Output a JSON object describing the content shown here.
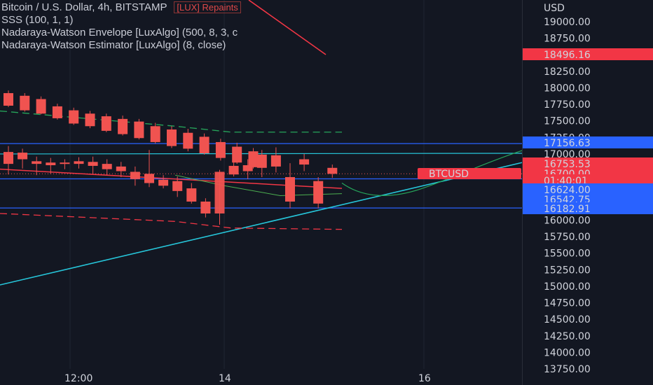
{
  "legend": {
    "title": "Bitcoin / U.S. Dollar, 4h, BITSTAMP",
    "repaint_note": "[LUX] Repaints",
    "line2": "SSS (100, 1, 1)",
    "line3": "Nadaraya-Watson Envelope [LuxAlgo] (500, 8, 3, c",
    "line4": "Nadaraya-Watson Estimator [LuxAlgo] (8, close)"
  },
  "axis": {
    "currency": "USD",
    "ticks": [
      "19000.00",
      "18750.00",
      "18250.00",
      "18000.00",
      "17750.00",
      "17500.00",
      "17250.00",
      "17000.00",
      "16000.00",
      "15750.00",
      "15500.00",
      "15250.00",
      "15000.00",
      "14750.00",
      "14500.00",
      "14250.00",
      "14000.00",
      "13750.00"
    ],
    "x_labels": [
      {
        "text": "12:00"
      },
      {
        "text": "14"
      },
      {
        "text": "16"
      }
    ]
  },
  "price_tags": [
    {
      "text": "18496.16",
      "color": "#f23645"
    },
    {
      "text": "17156.63",
      "color": "#2962ff"
    },
    {
      "text": "16753.53",
      "color": "#f23645"
    },
    {
      "text": "16700.00",
      "color": "#f23645"
    },
    {
      "text": "01:40:01",
      "color": "#f23645"
    },
    {
      "text": "16624.00",
      "color": "#2962ff"
    },
    {
      "text": "16542.75",
      "color": "#2962ff"
    },
    {
      "text": "16182.91",
      "color": "#2962ff"
    }
  ],
  "symbol_tag": {
    "text": "BTCUSD",
    "color": "#f23645"
  },
  "colors": {
    "background": "#131722",
    "candle": "#f05350",
    "trend": "#26c6da",
    "hline": "#2962ff",
    "envelope_upper": "#26a65b",
    "envelope_lower": "#f23645"
  },
  "chart_data": {
    "type": "candlestick",
    "title": "Bitcoin / U.S. Dollar, 4h, BITSTAMP",
    "ylim": [
      13700,
      19200
    ],
    "y_scale": "linear",
    "x_ticks": [
      "12:00",
      "14",
      "16"
    ],
    "candles": [
      {
        "x": 1,
        "open": 17920,
        "high": 17960,
        "low": 17710,
        "close": 17730
      },
      {
        "x": 2,
        "open": 17880,
        "high": 17920,
        "low": 17640,
        "close": 17660
      },
      {
        "x": 3,
        "open": 17830,
        "high": 17870,
        "low": 17600,
        "close": 17610
      },
      {
        "x": 4,
        "open": 17720,
        "high": 17760,
        "low": 17520,
        "close": 17540
      },
      {
        "x": 5,
        "open": 17660,
        "high": 17700,
        "low": 17440,
        "close": 17460
      },
      {
        "x": 6,
        "open": 17610,
        "high": 17650,
        "low": 17390,
        "close": 17420
      },
      {
        "x": 7,
        "open": 17570,
        "high": 17610,
        "low": 17330,
        "close": 17350
      },
      {
        "x": 8,
        "open": 17530,
        "high": 17580,
        "low": 17280,
        "close": 17300
      },
      {
        "x": 9,
        "open": 17490,
        "high": 17530,
        "low": 17220,
        "close": 17240
      },
      {
        "x": 10,
        "open": 17420,
        "high": 17470,
        "low": 17160,
        "close": 17180
      },
      {
        "x": 11,
        "open": 17370,
        "high": 17420,
        "low": 17090,
        "close": 17120
      },
      {
        "x": 12,
        "open": 17320,
        "high": 17380,
        "low": 17040,
        "close": 17080
      },
      {
        "x": 13,
        "open": 17260,
        "high": 17310,
        "low": 16990,
        "close": 17010
      },
      {
        "x": 14,
        "open": 17180,
        "high": 17230,
        "low": 16900,
        "close": 16940
      },
      {
        "x": 15,
        "open": 17110,
        "high": 17170,
        "low": 16850,
        "close": 16870
      },
      {
        "x": 16,
        "open": 17040,
        "high": 17090,
        "low": 16780,
        "close": 16800
      }
    ],
    "lower_candles": [
      {
        "x": 1,
        "open": 17030,
        "high": 17120,
        "low": 16690,
        "close": 16850
      },
      {
        "x": 2,
        "open": 17020,
        "high": 17080,
        "low": 16780,
        "close": 16920
      },
      {
        "x": 3,
        "open": 16890,
        "high": 16960,
        "low": 16680,
        "close": 16850
      },
      {
        "x": 4,
        "open": 16870,
        "high": 16940,
        "low": 16700,
        "close": 16830
      },
      {
        "x": 5,
        "open": 16870,
        "high": 16920,
        "low": 16770,
        "close": 16860
      },
      {
        "x": 6,
        "open": 16890,
        "high": 16950,
        "low": 16780,
        "close": 16850
      },
      {
        "x": 7,
        "open": 16880,
        "high": 16960,
        "low": 16700,
        "close": 16820
      },
      {
        "x": 8,
        "open": 16850,
        "high": 16920,
        "low": 16680,
        "close": 16770
      },
      {
        "x": 9,
        "open": 16810,
        "high": 16880,
        "low": 16650,
        "close": 16740
      },
      {
        "x": 10,
        "open": 16730,
        "high": 16810,
        "low": 16520,
        "close": 16620
      },
      {
        "x": 11,
        "open": 16700,
        "high": 17060,
        "low": 16500,
        "close": 16560
      },
      {
        "x": 12,
        "open": 16610,
        "high": 16680,
        "low": 16480,
        "close": 16520
      },
      {
        "x": 13,
        "open": 16590,
        "high": 16660,
        "low": 16350,
        "close": 16440
      },
      {
        "x": 14,
        "open": 16480,
        "high": 16560,
        "low": 16250,
        "close": 16280
      },
      {
        "x": 15,
        "open": 16280,
        "high": 16330,
        "low": 16040,
        "close": 16100
      },
      {
        "x": 16,
        "open": 16100,
        "high": 16760,
        "low": 15930,
        "close": 16730
      },
      {
        "x": 17,
        "open": 16820,
        "high": 16890,
        "low": 16660,
        "close": 16690
      },
      {
        "x": 18,
        "open": 16830,
        "high": 16920,
        "low": 16620,
        "close": 16740
      },
      {
        "x": 19,
        "open": 16990,
        "high": 17060,
        "low": 16650,
        "close": 16790
      },
      {
        "x": 20,
        "open": 16980,
        "high": 17100,
        "low": 16720,
        "close": 16810
      },
      {
        "x": 21,
        "open": 16650,
        "high": 16860,
        "low": 16180,
        "close": 16280
      },
      {
        "x": 22,
        "open": 16920,
        "high": 17000,
        "low": 16740,
        "close": 16840
      },
      {
        "x": 23,
        "open": 16590,
        "high": 16650,
        "low": 16180,
        "close": 16250
      },
      {
        "x": 24,
        "open": 16790,
        "high": 16840,
        "low": 16640,
        "close": 16700
      }
    ],
    "horizontal_levels": [
      17156.63,
      16624.0,
      16182.91
    ],
    "current_price": 16700.0
  }
}
